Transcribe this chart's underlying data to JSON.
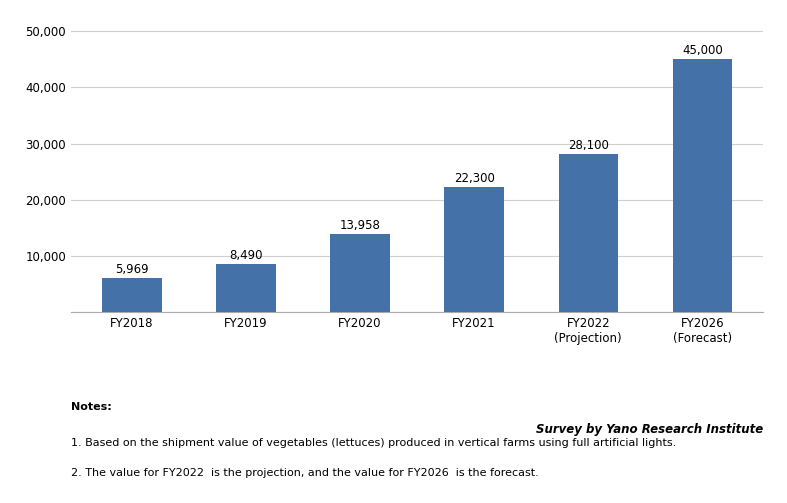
{
  "categories": [
    "FY2018",
    "FY2019",
    "FY2020",
    "FY2021",
    "FY2022\n(Projection)",
    "FY2026\n(Forecast)"
  ],
  "values": [
    5969,
    8490,
    13958,
    22300,
    28100,
    45000
  ],
  "bar_labels": [
    "5,969",
    "8,490",
    "13,958",
    "22,300",
    "28,100",
    "45,000"
  ],
  "bar_color": "#4472A8",
  "ylim": [
    0,
    52000
  ],
  "yticks": [
    0,
    10000,
    20000,
    30000,
    40000,
    50000
  ],
  "ytick_labels": [
    "",
    "10,000",
    "20,000",
    "30,000",
    "40,000",
    "50,000"
  ],
  "background_color": "#ffffff",
  "grid_color": "#d0d0d0",
  "source_text": "Survey by Yano Research Institute",
  "notes": [
    "Notes:",
    "1. Based on the shipment value of vegetables (lettuces) produced in vertical farms using full artificial lights.",
    "2. The value for FY2022  is the projection, and the value for FY2026  is the forecast."
  ],
  "bar_label_fontsize": 8.5,
  "tick_fontsize": 8.5,
  "note_fontsize": 8.0,
  "source_fontsize": 8.5
}
